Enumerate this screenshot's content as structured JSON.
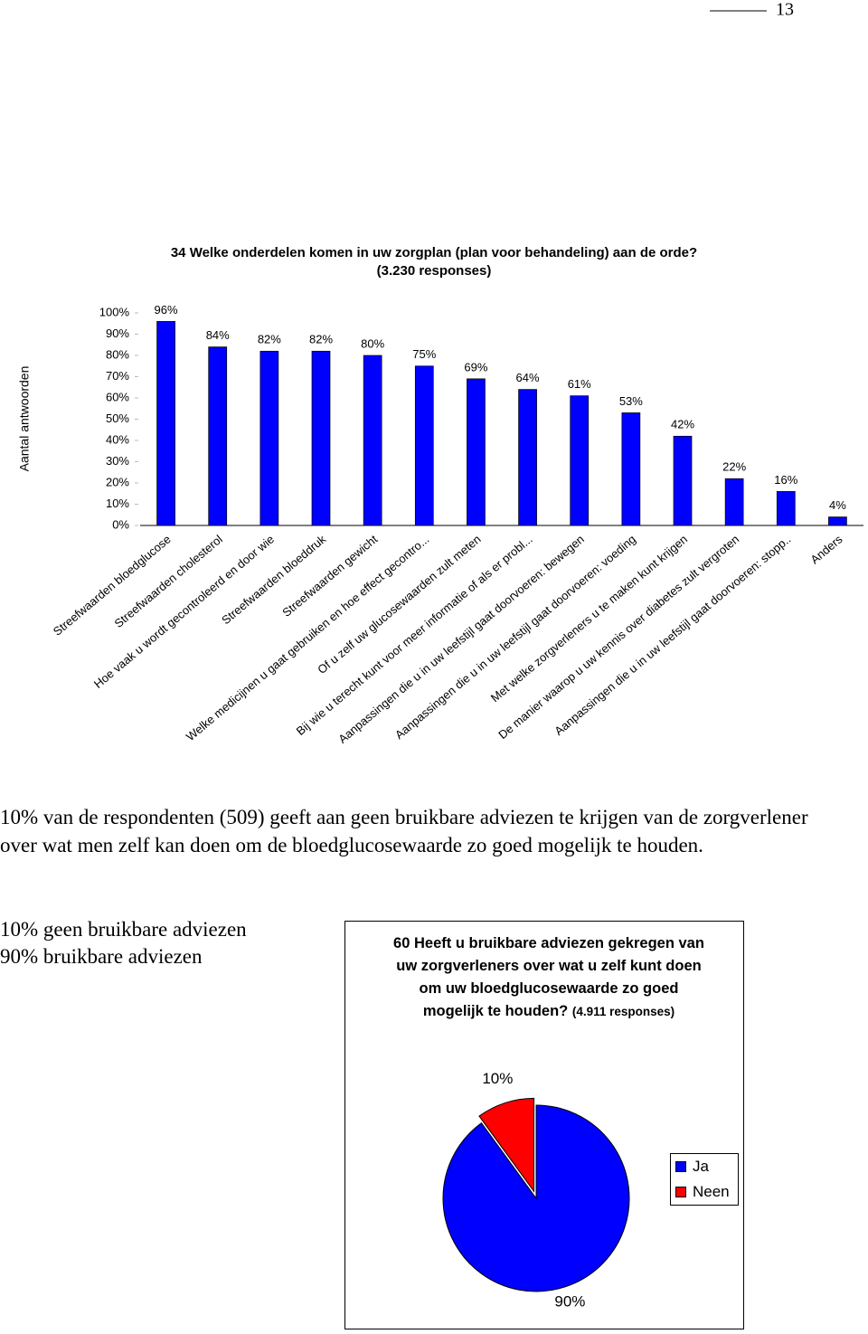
{
  "page_number": "13",
  "paragraph": "10% van de respondenten (509) geeft aan geen bruikbare adviezen te krijgen van de zorgverlener over wat men zelf kan doen om de bloedglucosewaarde zo goed mogelijk te houden.",
  "summary_lines": [
    "10% geen bruikbare adviezen",
    "90% bruikbare adviezen"
  ],
  "chart_data": [
    {
      "type": "bar",
      "title": "34 Welke onderdelen komen in uw zorgplan (plan voor behandeling) aan de orde?",
      "subtitle": "(3.230 responses)",
      "y_label": "Aantal antwoorden",
      "categories": [
        "Streefwaarden bloedglucose",
        "Streefwaarden cholesterol",
        "Hoe vaak u wordt gecontroleerd en door wie",
        "Streefwaarden bloeddruk",
        "Streefwaarden gewicht",
        "Welke medicijnen u gaat gebruiken en hoe effect gecontro...",
        "Of u zelf uw glucosewaarden zult meten",
        "Bij wie u terecht kunt voor meer informatie of als er probl...",
        "Aanpassingen die u in uw leefstijl gaat doorvoeren: bewegen",
        "Aanpassingen die u in uw leefstijl gaat doorvoeren: voeding",
        "Met welke zorgverleners u te maken kunt krijgen",
        "De manier waarop u uw kennis over diabetes zult vergroten",
        "Aanpassingen die u in uw leefstijl gaat doorvoeren: stopp..",
        "Anders"
      ],
      "values": [
        96,
        84,
        82,
        82,
        80,
        75,
        69,
        64,
        61,
        53,
        42,
        22,
        16,
        4
      ],
      "value_labels": [
        "96%",
        "84%",
        "82%",
        "82%",
        "80%",
        "75%",
        "69%",
        "64%",
        "61%",
        "53%",
        "42%",
        "22%",
        "16%",
        "4%"
      ],
      "color": "#0000ff",
      "ylim": [
        0,
        100
      ],
      "yticks": [
        {
          "value": 0,
          "label": "0%"
        },
        {
          "value": 10,
          "label": "10%"
        },
        {
          "value": 20,
          "label": "20%"
        },
        {
          "value": 30,
          "label": "30%"
        },
        {
          "value": 40,
          "label": "40%"
        },
        {
          "value": 50,
          "label": "50%"
        },
        {
          "value": 60,
          "label": "60%"
        },
        {
          "value": 70,
          "label": "70%"
        },
        {
          "value": 80,
          "label": "80%"
        },
        {
          "value": 90,
          "label": "90%"
        },
        {
          "value": 100,
          "label": "100%"
        }
      ]
    },
    {
      "type": "pie",
      "title": "60 Heeft u bruikbare adviezen gekregen van uw zorgverleners over wat u zelf kunt doen om uw bloedglucosewaarde zo goed mogelijk te houden?",
      "subtitle": "(4.911 responses)",
      "series": [
        {
          "name": "Ja",
          "color": "#0000ff",
          "values": [
            90
          ],
          "value_labels": [
            "90%"
          ]
        },
        {
          "name": "Neen",
          "color": "#ff0000",
          "values": [
            10
          ],
          "value_labels": [
            "10%"
          ]
        }
      ],
      "legend": "right"
    }
  ]
}
